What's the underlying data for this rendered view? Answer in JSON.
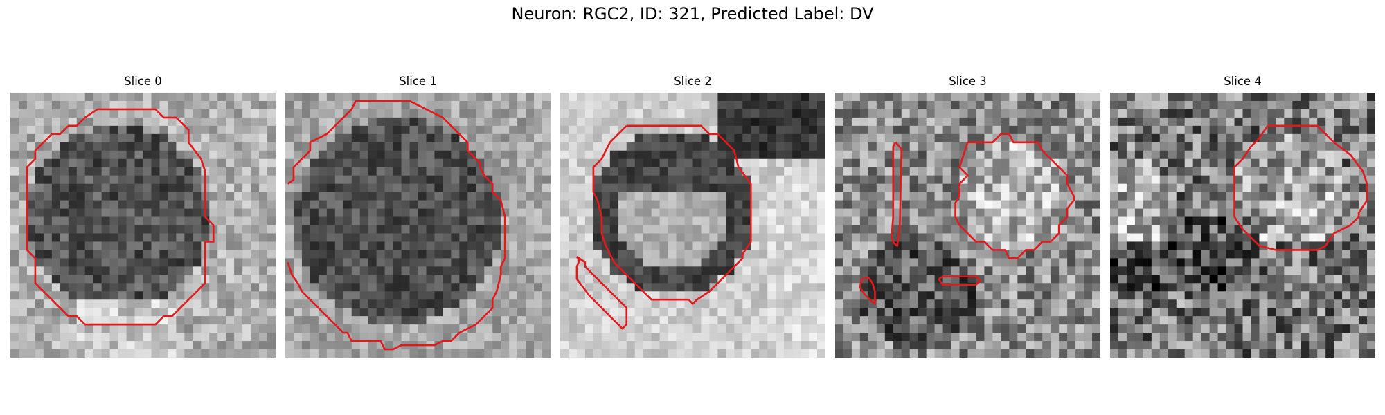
{
  "figure": {
    "title": "Neuron: RGC2, ID: 321, Predicted Label: DV"
  },
  "slices": [
    {
      "title": "Slice 0"
    },
    {
      "title": "Slice 1"
    },
    {
      "title": "Slice 2"
    },
    {
      "title": "Slice 3"
    },
    {
      "title": "Slice 4"
    }
  ],
  "colors": {
    "contour": "#e31a1c",
    "background": "#ffffff"
  }
}
